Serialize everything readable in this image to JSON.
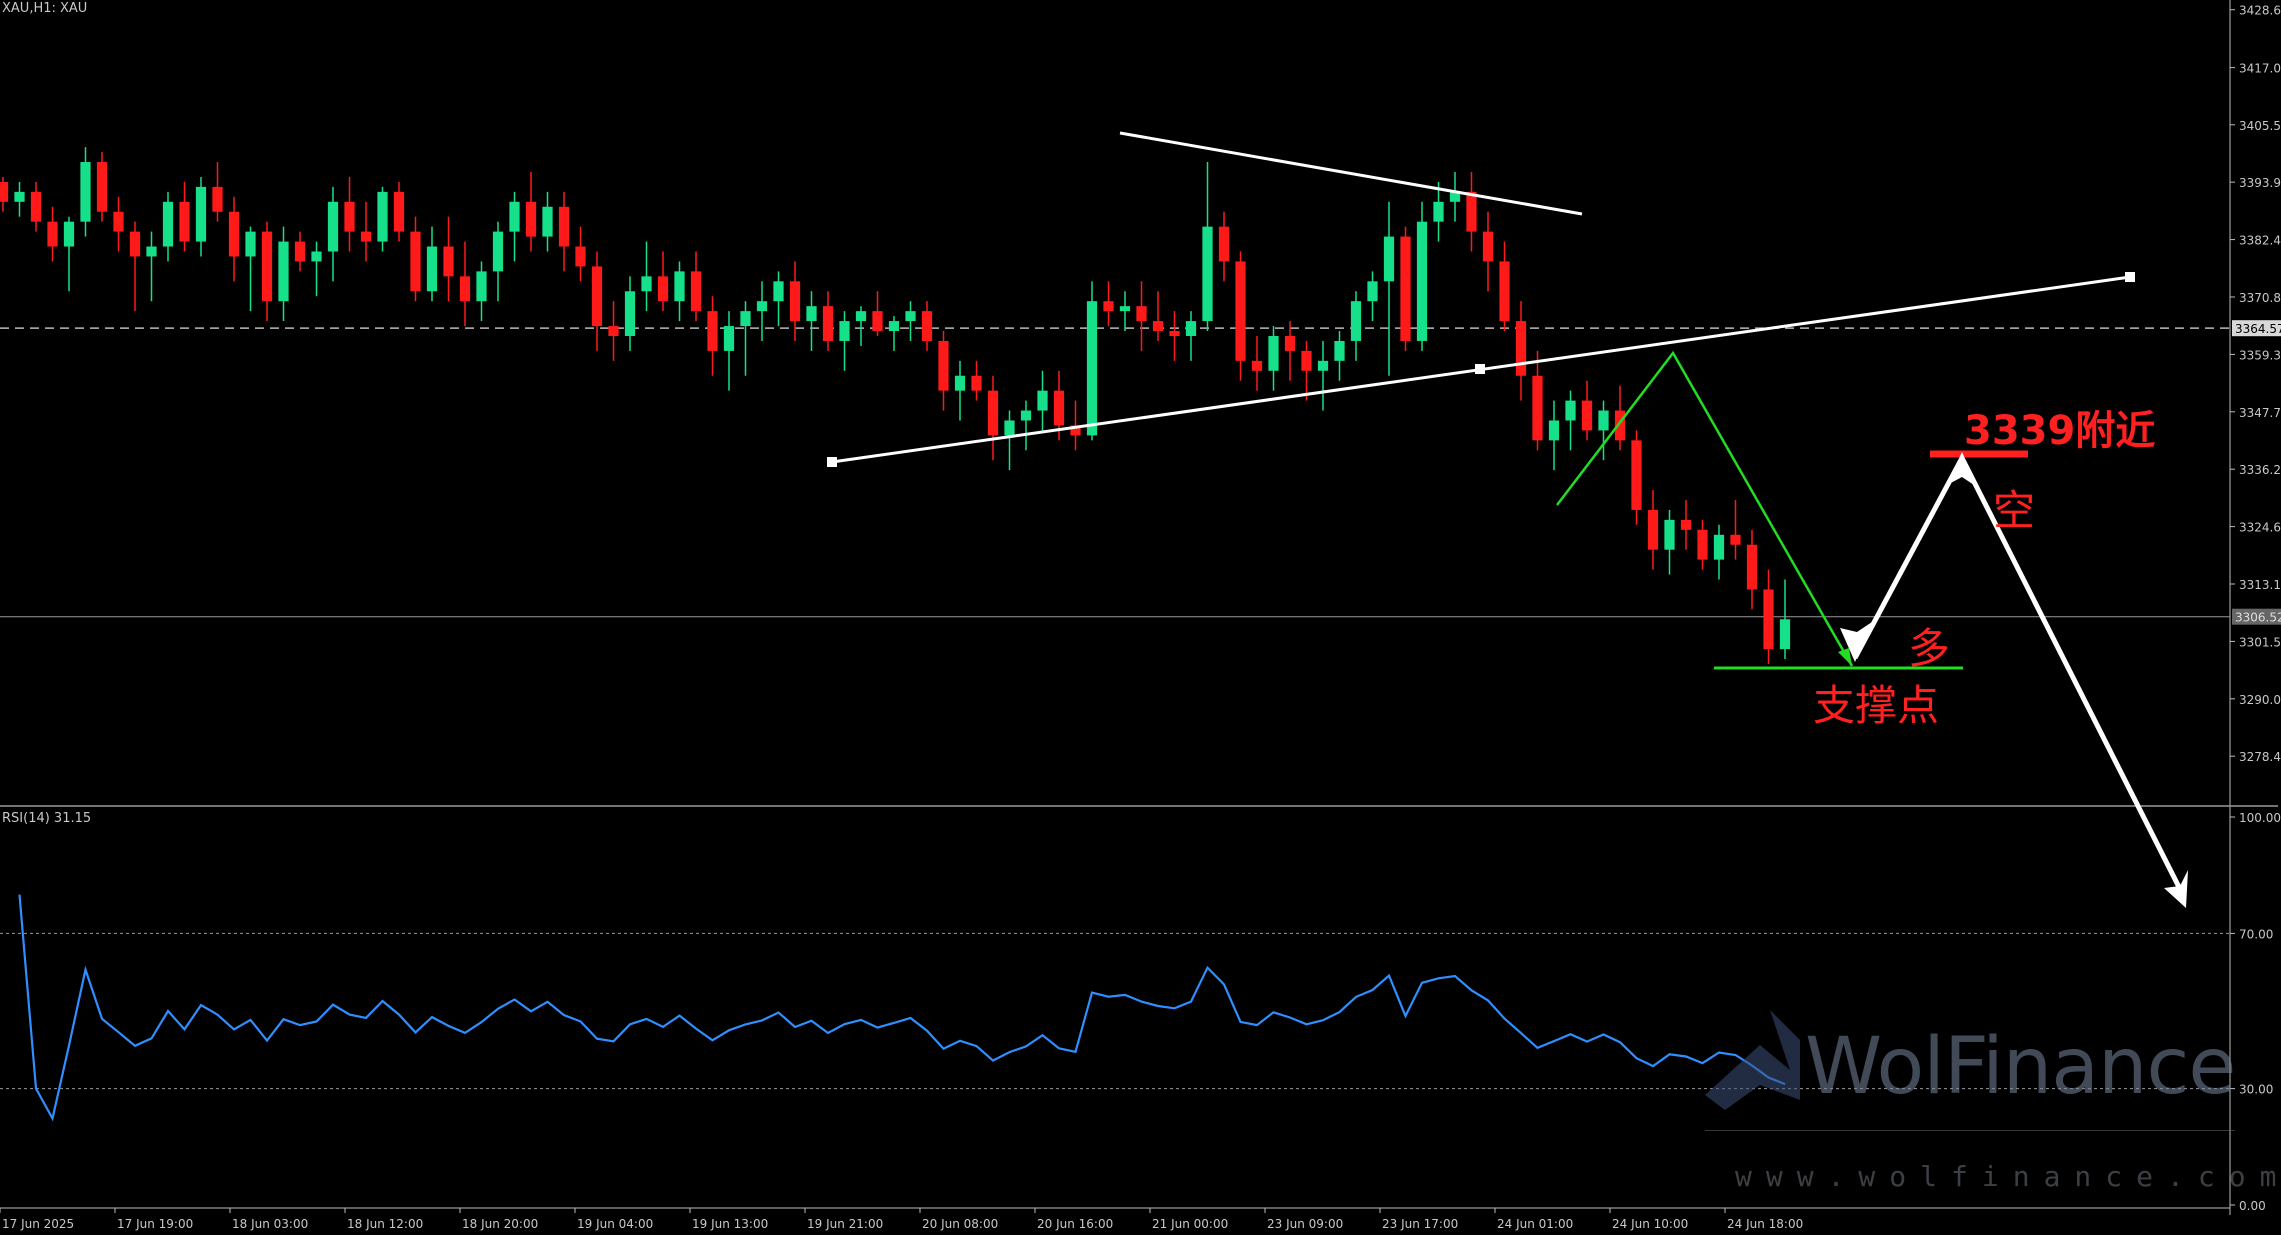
{
  "header": {
    "symbol_label": "XAU,H1: XAU"
  },
  "price_axis": {
    "labels": [
      "3428.65",
      "3417.00",
      "3405.50",
      "3393.95",
      "3382.40",
      "3370.85",
      "3359.30",
      "3347.75",
      "3336.20",
      "3324.65",
      "3313.10",
      "3301.55",
      "3290.00",
      "3278.45"
    ],
    "dashed_level": "3364.57",
    "current_level": "3306.52"
  },
  "rsi": {
    "label": "RSI(14) 31.15",
    "axis_labels": [
      "100.00",
      "70.00",
      "30.00",
      "0.00"
    ]
  },
  "time_axis": {
    "labels": [
      "17 Jun 2025",
      "17 Jun 19:00",
      "18 Jun 03:00",
      "18 Jun 12:00",
      "18 Jun 20:00",
      "19 Jun 04:00",
      "19 Jun 13:00",
      "19 Jun 21:00",
      "20 Jun 08:00",
      "20 Jun 16:00",
      "21 Jun 00:00",
      "23 Jun 09:00",
      "23 Jun 17:00",
      "24 Jun 01:00",
      "24 Jun 10:00",
      "24 Jun 18:00"
    ]
  },
  "annotations": {
    "target_price": "3339附近",
    "short": "空",
    "long": "多",
    "support": "支撑点"
  },
  "watermark": {
    "brand": "WolFinance",
    "url": "www.wolfinance.com"
  },
  "colors": {
    "bull": "#16e08a",
    "bear": "#ff1a1a",
    "rsi": "#2f8fff",
    "annotation": "#ff2020",
    "arrow": "#ffffff",
    "path": "#22dd22"
  },
  "chart_data": {
    "type": "candlestick",
    "symbol": "XAU",
    "timeframe": "H1",
    "candles_approx": [
      [
        3394,
        3395,
        3388,
        3390
      ],
      [
        3390,
        3394,
        3387,
        3392
      ],
      [
        3392,
        3394,
        3384,
        3386
      ],
      [
        3386,
        3389,
        3378,
        3381
      ],
      [
        3381,
        3387,
        3372,
        3386
      ],
      [
        3386,
        3401,
        3383,
        3398
      ],
      [
        3398,
        3400,
        3386,
        3388
      ],
      [
        3388,
        3391,
        3380,
        3384
      ],
      [
        3384,
        3386,
        3368,
        3379
      ],
      [
        3379,
        3384,
        3370,
        3381
      ],
      [
        3381,
        3392,
        3378,
        3390
      ],
      [
        3390,
        3394,
        3380,
        3382
      ],
      [
        3382,
        3395,
        3379,
        3393
      ],
      [
        3393,
        3398,
        3386,
        3388
      ],
      [
        3388,
        3391,
        3374,
        3379
      ],
      [
        3379,
        3385,
        3368,
        3384
      ],
      [
        3384,
        3386,
        3366,
        3370
      ],
      [
        3370,
        3385,
        3366,
        3382
      ],
      [
        3382,
        3384,
        3376,
        3378
      ],
      [
        3378,
        3382,
        3371,
        3380
      ],
      [
        3380,
        3393,
        3374,
        3390
      ],
      [
        3390,
        3395,
        3380,
        3384
      ],
      [
        3384,
        3390,
        3378,
        3382
      ],
      [
        3382,
        3393,
        3380,
        3392
      ],
      [
        3392,
        3394,
        3382,
        3384
      ],
      [
        3384,
        3387,
        3370,
        3372
      ],
      [
        3372,
        3385,
        3370,
        3381
      ],
      [
        3381,
        3387,
        3370,
        3375
      ],
      [
        3375,
        3382,
        3365,
        3370
      ],
      [
        3370,
        3378,
        3366,
        3376
      ],
      [
        3376,
        3386,
        3370,
        3384
      ],
      [
        3384,
        3392,
        3378,
        3390
      ],
      [
        3390,
        3396,
        3380,
        3383
      ],
      [
        3383,
        3392,
        3380,
        3389
      ],
      [
        3389,
        3392,
        3376,
        3381
      ],
      [
        3381,
        3385,
        3374,
        3377
      ],
      [
        3377,
        3380,
        3360,
        3365
      ],
      [
        3365,
        3370,
        3358,
        3363
      ],
      [
        3363,
        3375,
        3360,
        3372
      ],
      [
        3372,
        3382,
        3368,
        3375
      ],
      [
        3375,
        3380,
        3368,
        3370
      ],
      [
        3370,
        3378,
        3366,
        3376
      ],
      [
        3376,
        3380,
        3366,
        3368
      ],
      [
        3368,
        3371,
        3355,
        3360
      ],
      [
        3360,
        3368,
        3352,
        3365
      ],
      [
        3365,
        3370,
        3355,
        3368
      ],
      [
        3368,
        3374,
        3362,
        3370
      ],
      [
        3370,
        3376,
        3365,
        3374
      ],
      [
        3374,
        3378,
        3362,
        3366
      ],
      [
        3366,
        3372,
        3360,
        3369
      ],
      [
        3369,
        3372,
        3360,
        3362
      ],
      [
        3362,
        3368,
        3356,
        3366
      ],
      [
        3366,
        3369,
        3361,
        3368
      ],
      [
        3368,
        3372,
        3363,
        3364
      ],
      [
        3364,
        3367,
        3360,
        3366
      ],
      [
        3366,
        3370,
        3362,
        3368
      ],
      [
        3368,
        3370,
        3360,
        3362
      ],
      [
        3362,
        3364,
        3348,
        3352
      ],
      [
        3352,
        3358,
        3346,
        3355
      ],
      [
        3355,
        3358,
        3350,
        3352
      ],
      [
        3352,
        3355,
        3338,
        3343
      ],
      [
        3343,
        3348,
        3336,
        3346
      ],
      [
        3346,
        3350,
        3340,
        3348
      ],
      [
        3348,
        3356,
        3344,
        3352
      ],
      [
        3352,
        3356,
        3342,
        3345
      ],
      [
        3345,
        3350,
        3340,
        3343
      ],
      [
        3343,
        3374,
        3342,
        3370
      ],
      [
        3370,
        3374,
        3365,
        3368
      ],
      [
        3368,
        3372,
        3364,
        3369
      ],
      [
        3369,
        3374,
        3360,
        3366
      ],
      [
        3366,
        3372,
        3362,
        3364
      ],
      [
        3364,
        3368,
        3358,
        3363
      ],
      [
        3363,
        3368,
        3358,
        3366
      ],
      [
        3366,
        3398,
        3364,
        3385
      ],
      [
        3385,
        3388,
        3374,
        3378
      ],
      [
        3378,
        3380,
        3354,
        3358
      ],
      [
        3358,
        3363,
        3352,
        3356
      ],
      [
        3356,
        3365,
        3352,
        3363
      ],
      [
        3363,
        3366,
        3354,
        3360
      ],
      [
        3360,
        3362,
        3350,
        3356
      ],
      [
        3356,
        3362,
        3348,
        3358
      ],
      [
        3358,
        3364,
        3354,
        3362
      ],
      [
        3362,
        3372,
        3358,
        3370
      ],
      [
        3370,
        3376,
        3366,
        3374
      ],
      [
        3374,
        3390,
        3355,
        3383
      ],
      [
        3383,
        3385,
        3360,
        3362
      ],
      [
        3362,
        3390,
        3360,
        3386
      ],
      [
        3386,
        3394,
        3382,
        3390
      ],
      [
        3390,
        3396,
        3386,
        3392
      ],
      [
        3392,
        3396,
        3380,
        3384
      ],
      [
        3384,
        3388,
        3372,
        3378
      ],
      [
        3378,
        3382,
        3364,
        3366
      ],
      [
        3366,
        3370,
        3350,
        3355
      ],
      [
        3355,
        3360,
        3340,
        3342
      ],
      [
        3342,
        3350,
        3336,
        3346
      ],
      [
        3346,
        3352,
        3340,
        3350
      ],
      [
        3350,
        3354,
        3342,
        3344
      ],
      [
        3344,
        3350,
        3338,
        3348
      ],
      [
        3348,
        3353,
        3340,
        3342
      ],
      [
        3342,
        3344,
        3325,
        3328
      ],
      [
        3328,
        3332,
        3316,
        3320
      ],
      [
        3320,
        3328,
        3315,
        3326
      ],
      [
        3326,
        3330,
        3320,
        3324
      ],
      [
        3324,
        3326,
        3316,
        3318
      ],
      [
        3318,
        3325,
        3314,
        3323
      ],
      [
        3323,
        3330,
        3318,
        3321
      ],
      [
        3321,
        3324,
        3308,
        3312
      ],
      [
        3312,
        3316,
        3297,
        3300
      ],
      [
        3300,
        3314,
        3298,
        3306
      ]
    ],
    "levels": {
      "dashed": 3364.57,
      "current": 3306.52
    },
    "rsi_period": 14,
    "rsi_last": 31.15,
    "rsi_levels": [
      70,
      30
    ],
    "price_range": [
      3270,
      3430
    ],
    "rsi_range": [
      0,
      100
    ]
  }
}
